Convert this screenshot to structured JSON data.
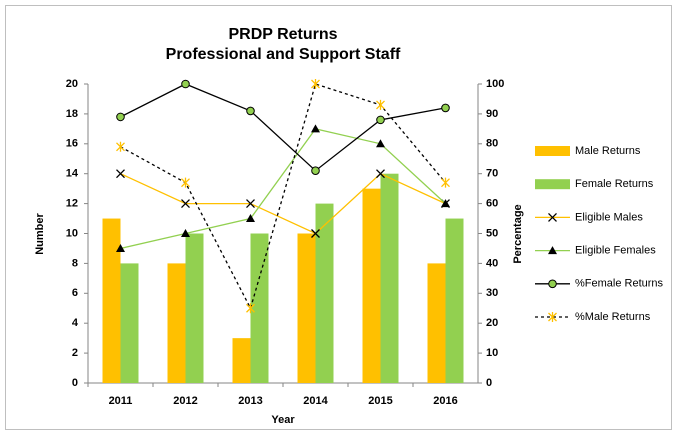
{
  "chart_data": {
    "type": "combo",
    "title": "PRDP Returns",
    "subtitle": "Professional and Support Staff",
    "x_label": "Year",
    "y_label": "Number",
    "y2_label": "Percentage",
    "categories": [
      "2011",
      "2012",
      "2013",
      "2014",
      "2015",
      "2016"
    ],
    "ylim": [
      0,
      20
    ],
    "yticks": [
      0,
      2,
      4,
      6,
      8,
      10,
      12,
      14,
      16,
      18,
      20
    ],
    "y2lim": [
      0,
      100
    ],
    "y2ticks": [
      0,
      10,
      20,
      30,
      40,
      50,
      60,
      70,
      80,
      90,
      100
    ],
    "legend": "right",
    "series": [
      {
        "name": "Male Returns",
        "type": "bar",
        "color": "#ffc000",
        "values": [
          11,
          8,
          3,
          10,
          13,
          8
        ]
      },
      {
        "name": "Female Returns",
        "type": "bar",
        "color": "#92d050",
        "values": [
          8,
          10,
          10,
          12,
          14,
          11
        ]
      },
      {
        "name": "Eligible Males",
        "type": "line",
        "color": "#ffc000",
        "marker": "x",
        "marker_color": "#000000",
        "values": [
          14,
          12,
          12,
          10,
          14,
          12
        ]
      },
      {
        "name": "Eligible Females",
        "type": "line",
        "color": "#92d050",
        "marker": "triangle",
        "marker_color": "#000000",
        "values": [
          9,
          10,
          11,
          17,
          16,
          12
        ]
      },
      {
        "name": "%Female Returns",
        "type": "line",
        "axis": "y2",
        "color": "#000000",
        "marker": "circle",
        "marker_color": "#92d050",
        "values": [
          89,
          100,
          91,
          71,
          88,
          92
        ]
      },
      {
        "name": "%Male Returns",
        "type": "line",
        "axis": "y2",
        "color": "#000000",
        "dashed": true,
        "marker": "star",
        "marker_color": "#ffc000",
        "values": [
          79,
          67,
          25,
          100,
          93,
          67
        ]
      }
    ]
  }
}
